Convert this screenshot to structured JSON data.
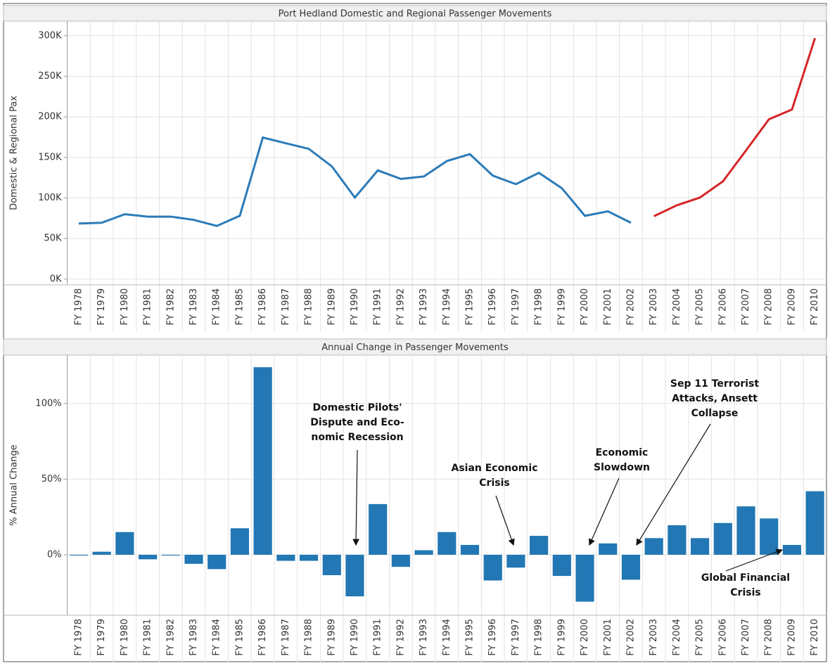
{
  "chart_data": [
    {
      "type": "line",
      "title": "Port Hedland Domestic and Regional Passenger Movements",
      "y_label": "Domestic & Regional Pax",
      "categories": [
        "FY 1978",
        "FY 1979",
        "FY 1980",
        "FY 1981",
        "FY 1982",
        "FY 1983",
        "FY 1984",
        "FY 1985",
        "FY 1986",
        "FY 1987",
        "FY 1988",
        "FY 1989",
        "FY 1990",
        "FY 1991",
        "FY 1992",
        "FY 1993",
        "FY 1994",
        "FY 1995",
        "FY 1996",
        "FY 1997",
        "FY 1998",
        "FY 1999",
        "FY 2000",
        "FY 2001",
        "FY 2002",
        "FY 2003",
        "FY 2004",
        "FY 2005",
        "FY 2006",
        "FY 2007",
        "FY 2008",
        "FY 2009",
        "FY 2010"
      ],
      "series": [
        {
          "color": "#2b7bb9",
          "values": [
            68500,
            69500,
            80000,
            77000,
            77000,
            73000,
            65500,
            78000,
            174500,
            167500,
            160500,
            139000,
            100500,
            134000,
            123500,
            126500,
            145500,
            154000,
            127500,
            117000,
            131000,
            112000,
            78000,
            83500,
            69500,
            null,
            null,
            null,
            null,
            null,
            null,
            null,
            null
          ]
        },
        {
          "color": "#d62728",
          "values": [
            null,
            null,
            null,
            null,
            null,
            null,
            null,
            null,
            null,
            null,
            null,
            null,
            null,
            null,
            null,
            null,
            null,
            null,
            null,
            null,
            null,
            null,
            null,
            null,
            null,
            77500,
            91000,
            100500,
            120500,
            158500,
            197000,
            209000,
            297000
          ]
        }
      ],
      "ylim": [
        -7000,
        318000
      ],
      "yticks": [
        {
          "value": 0,
          "label": "0K"
        },
        {
          "value": 50000,
          "label": "50K"
        },
        {
          "value": 100000,
          "label": "100K"
        },
        {
          "value": 150000,
          "label": "150K"
        },
        {
          "value": 200000,
          "label": "200K"
        },
        {
          "value": 250000,
          "label": "250K"
        },
        {
          "value": 300000,
          "label": "300K"
        }
      ],
      "grid": true
    },
    {
      "type": "bar",
      "title": "Annual Change in Passenger Movements",
      "y_label": "% Annual Change",
      "color": "#2277b4",
      "categories": [
        "FY 1978",
        "FY 1979",
        "FY 1980",
        "FY 1981",
        "FY 1982",
        "FY 1983",
        "FY 1984",
        "FY 1985",
        "FY 1986",
        "FY 1987",
        "FY 1988",
        "FY 1989",
        "FY 1990",
        "FY 1991",
        "FY 1992",
        "FY 1993",
        "FY 1994",
        "FY 1995",
        "FY 1996",
        "FY 1997",
        "FY 1998",
        "FY 1999",
        "FY 2000",
        "FY 2001",
        "FY 2002",
        "FY 2003",
        "FY 2004",
        "FY 2005",
        "FY 2006",
        "FY 2007",
        "FY 2008",
        "FY 2009",
        "FY 2010"
      ],
      "values": [
        -0.5,
        2,
        15,
        -3,
        -0.5,
        -6,
        -9.5,
        17.5,
        124,
        -4,
        -4,
        -13.5,
        -27.5,
        33.5,
        -8,
        3,
        15,
        6.5,
        -17,
        -8.5,
        12.5,
        -14,
        -31,
        7.5,
        -16.5,
        11,
        19.5,
        11,
        21,
        32,
        24,
        6.5,
        42
      ],
      "ylim": [
        -40,
        132
      ],
      "yticks": [
        {
          "value": 0,
          "label": "0%"
        },
        {
          "value": 50,
          "label": "50%"
        },
        {
          "value": 100,
          "label": "100%"
        }
      ],
      "grid": true,
      "annotations": [
        {
          "lines": [
            "Domestic Pilots'",
            "Dispute and Eco-",
            "nomic Recession"
          ]
        },
        {
          "lines": [
            "Asian Economic",
            "Crisis"
          ]
        },
        {
          "lines": [
            "Economic",
            "Slowdown"
          ]
        },
        {
          "lines": [
            "Sep 11 Terrorist",
            "Attacks, Ansett",
            "Collapse"
          ]
        },
        {
          "lines": [
            "Global Financial",
            "Crisis"
          ]
        }
      ]
    }
  ]
}
